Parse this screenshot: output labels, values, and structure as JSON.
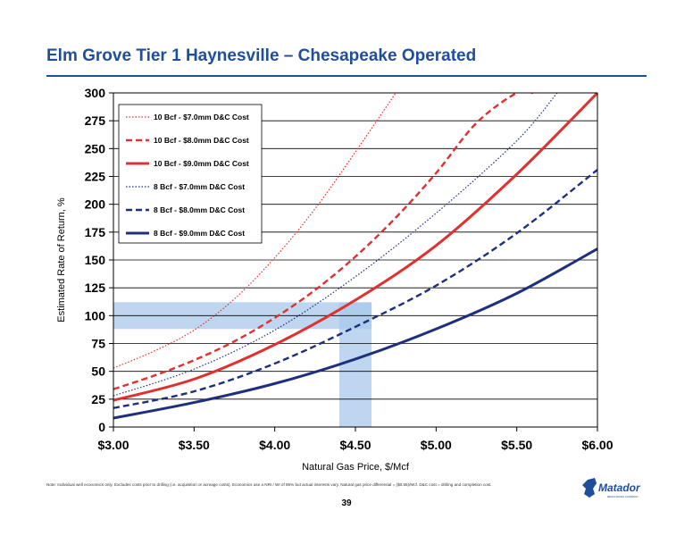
{
  "slide": {
    "title": "Elm Grove Tier 1 Haynesville – Chesapeake Operated",
    "footnote": "Note: Individual well economics only. Excludes costs prior to drilling (i.e. acquisition or acreage costs). Economics use a NRI / WI of 85% but actual interests vary. Natural gas price differential = ($0.55)/Mcf. D&C cost = drilling and completion cost.",
    "page_number": "39",
    "logo_text": "Matador",
    "logo_subtext": "RESOURCES COMPANY"
  },
  "chart_data": {
    "type": "line",
    "title": "",
    "xlabel": "Natural  Gas Price, $/Mcf",
    "ylabel": "Estimated Rate of Return, %",
    "xlim": [
      3.0,
      6.0
    ],
    "ylim": [
      0,
      300
    ],
    "grid": "horizontal",
    "legend_position": "top-left",
    "x_ticks": [
      3.0,
      3.5,
      4.0,
      4.5,
      5.0,
      5.5,
      6.0
    ],
    "x_tick_labels": [
      "$3.00",
      "$3.50",
      "$4.00",
      "$4.50",
      "$5.00",
      "$5.50",
      "$6.00"
    ],
    "y_ticks": [
      0,
      25,
      50,
      75,
      100,
      125,
      150,
      175,
      200,
      225,
      250,
      275,
      300
    ],
    "y_tick_labels": [
      "0",
      "25",
      "50",
      "75",
      "100",
      "125",
      "150",
      "175",
      "200",
      "225",
      "250",
      "275",
      "300"
    ],
    "series": [
      {
        "name": "10 Bcf - $7.0mm D&C Cost",
        "color": "#e03030",
        "style": "dotted",
        "x": [
          3.0,
          3.25,
          3.5,
          3.75,
          4.0,
          4.25,
          4.5,
          4.75
        ],
        "y": [
          53,
          68,
          87,
          115,
          152,
          196,
          247,
          300
        ]
      },
      {
        "name": "10 Bcf - $8.0mm D&C Cost",
        "color": "#e03030",
        "style": "dashed",
        "x": [
          3.0,
          3.25,
          3.5,
          3.75,
          4.0,
          4.25,
          4.5,
          4.75,
          5.0,
          5.25,
          5.5,
          5.6
        ],
        "y": [
          34,
          46,
          60,
          77,
          98,
          123,
          153,
          188,
          228,
          273,
          300,
          300
        ]
      },
      {
        "name": "10 Bcf - $9.0mm D&C Cost",
        "color": "#e03030",
        "style": "solid",
        "x": [
          3.0,
          3.5,
          4.0,
          4.5,
          5.0,
          5.5,
          6.0
        ],
        "y": [
          24,
          43,
          74,
          114,
          163,
          227,
          300
        ]
      },
      {
        "name": "8 Bcf - $7.0mm D&C Cost",
        "color": "#1f2f80",
        "style": "dotted",
        "x": [
          3.0,
          3.5,
          4.0,
          4.5,
          5.0,
          5.5,
          5.75
        ],
        "y": [
          28,
          52,
          87,
          135,
          192,
          257,
          300
        ]
      },
      {
        "name": "8 Bcf - $8.0mm D&C Cost",
        "color": "#1f2f80",
        "style": "dashed",
        "x": [
          3.0,
          3.5,
          4.0,
          4.5,
          5.0,
          5.5,
          6.0
        ],
        "y": [
          17,
          32,
          57,
          90,
          127,
          174,
          231
        ]
      },
      {
        "name": "8 Bcf - $9.0mm D&C Cost",
        "color": "#1f2f80",
        "style": "solid",
        "x": [
          3.0,
          3.5,
          4.0,
          4.5,
          5.0,
          5.5,
          6.0
        ],
        "y": [
          8,
          22,
          39,
          61,
          88,
          120,
          160
        ]
      }
    ],
    "highlight_bands": [
      {
        "axis": "y",
        "from": 88,
        "to": 112,
        "x_from": 3.0,
        "x_to": 4.6,
        "color": "#a8c8ea"
      },
      {
        "axis": "x",
        "from": 4.4,
        "to": 4.6,
        "y_from": 0,
        "y_to": 112,
        "color": "#a8c8ea"
      }
    ]
  }
}
